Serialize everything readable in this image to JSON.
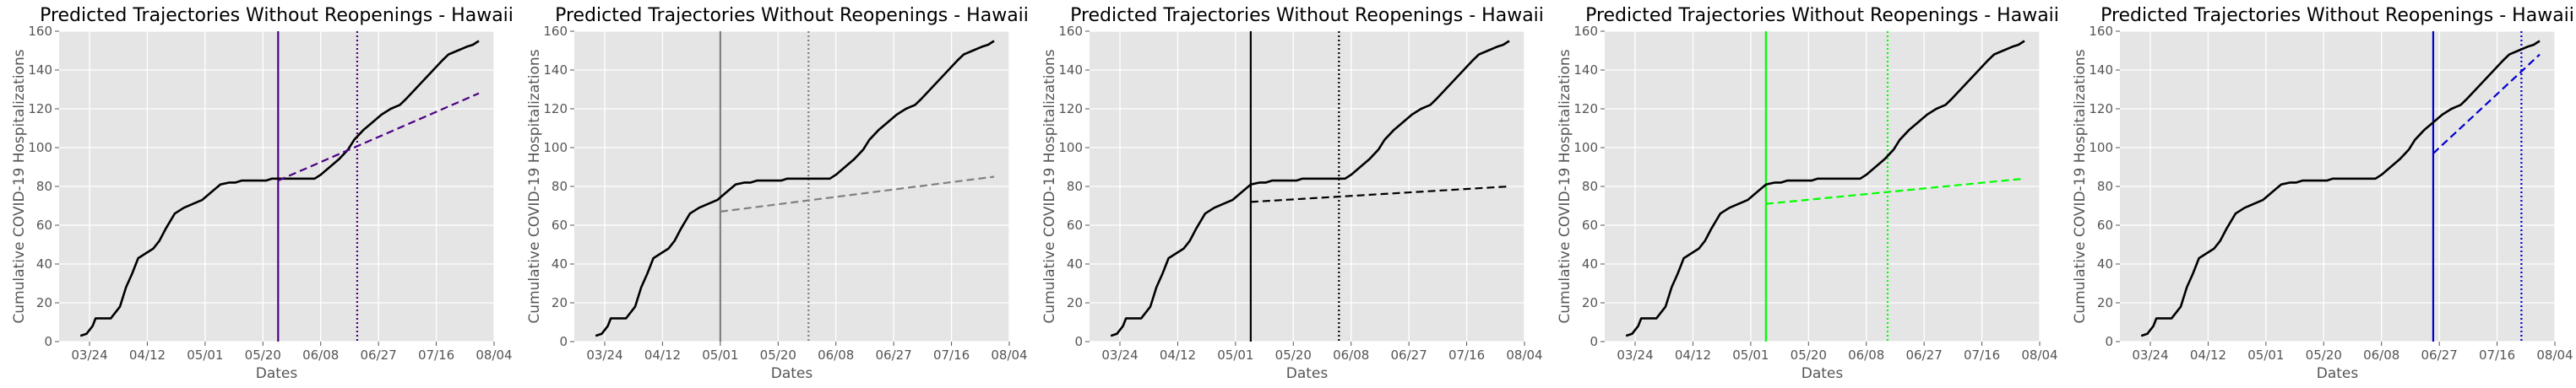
{
  "chart_data": [
    {
      "type": "line",
      "title": "Predicted Trajectories Without Reopenings - Hawaii",
      "xlabel": "Dates",
      "ylabel": "Cumulative COVID-19 Hospitalizations",
      "x_range": [
        "2020-03-14",
        "2020-08-04"
      ],
      "ylim": [
        0,
        160
      ],
      "x_ticks": [
        "03/24",
        "04/12",
        "05/01",
        "05/20",
        "06/08",
        "06/27",
        "07/16",
        "08/04"
      ],
      "y_ticks": [
        0,
        20,
        40,
        60,
        80,
        100,
        120,
        140,
        160
      ],
      "grid": true,
      "accent_color": "#4B0082",
      "observed": {
        "x": [
          "2020-03-21",
          "2020-03-23",
          "2020-03-25",
          "2020-03-26",
          "2020-03-28",
          "2020-03-31",
          "2020-04-03",
          "2020-04-05",
          "2020-04-07",
          "2020-04-09",
          "2020-04-11",
          "2020-04-14",
          "2020-04-16",
          "2020-04-18",
          "2020-04-21",
          "2020-04-24",
          "2020-04-27",
          "2020-04-30",
          "2020-05-03",
          "2020-05-06",
          "2020-05-09",
          "2020-05-11",
          "2020-05-13",
          "2020-05-15",
          "2020-05-18",
          "2020-05-21",
          "2020-05-23",
          "2020-05-25",
          "2020-05-28",
          "2020-05-31",
          "2020-06-03",
          "2020-06-06",
          "2020-06-08",
          "2020-06-11",
          "2020-06-14",
          "2020-06-17",
          "2020-06-19",
          "2020-06-22",
          "2020-06-25",
          "2020-06-28",
          "2020-07-01",
          "2020-07-04",
          "2020-07-06",
          "2020-07-09",
          "2020-07-12",
          "2020-07-15",
          "2020-07-18",
          "2020-07-20",
          "2020-07-23",
          "2020-07-26",
          "2020-07-28",
          "2020-07-30"
        ],
        "y": [
          3,
          4,
          8,
          12,
          12,
          12,
          18,
          28,
          35,
          43,
          45,
          48,
          52,
          58,
          66,
          69,
          71,
          73,
          77,
          81,
          82,
          82,
          83,
          83,
          83,
          83,
          84,
          84,
          84,
          84,
          84,
          84,
          86,
          90,
          94,
          99,
          104,
          109,
          113,
          117,
          120,
          122,
          125,
          130,
          135,
          140,
          145,
          148,
          150,
          152,
          153,
          155
        ]
      },
      "series": [
        {
          "color": "#4B0082",
          "start": "2020-05-25",
          "x0": "2020-05-25",
          "y0": 83,
          "x1": "2020-07-30",
          "y1": 128,
          "reopen": "2020-06-20"
        },
        {
          "color": "#808080",
          "start": "2020-05-01",
          "x0": "2020-05-01",
          "y0": 67,
          "x1": "2020-07-30",
          "y1": 85,
          "reopen": "2020-05-30"
        },
        {
          "color": "#000000",
          "start": "2020-05-06",
          "x0": "2020-05-06",
          "y0": 72,
          "x1": "2020-07-30",
          "y1": 80,
          "reopen": "2020-06-04"
        },
        {
          "color": "#00FF00",
          "start": "2020-05-06",
          "x0": "2020-05-06",
          "y0": 71,
          "x1": "2020-07-30",
          "y1": 84,
          "reopen": "2020-06-15"
        },
        {
          "color": "#0000CD",
          "start": "2020-06-25",
          "x0": "2020-06-25",
          "y0": 97,
          "x1": "2020-07-30",
          "y1": 148,
          "reopen": "2020-07-24"
        }
      ]
    }
  ]
}
